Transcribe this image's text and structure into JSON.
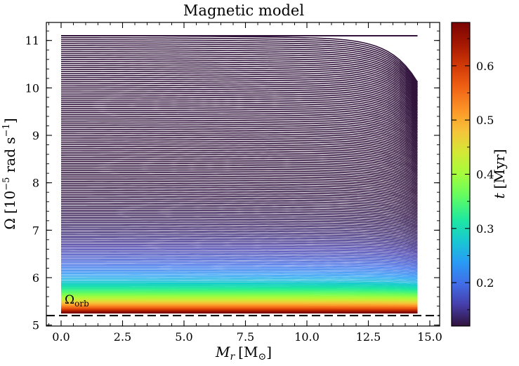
{
  "chart_data": {
    "type": "line",
    "title": "Magnetic model",
    "xlabel": {
      "symbol": "M",
      "sub": "r",
      "unit": "[M",
      "unit_sym": "⊙",
      "unit_end": "]"
    },
    "ylabel": {
      "symbol": "Ω",
      "pre": "[10",
      "exp": "−5",
      "mid": " rad s",
      "exp2": "−1",
      "end": "]"
    },
    "xlim": [
      -0.6,
      15.4
    ],
    "ylim": [
      4.98,
      11.38
    ],
    "xticks": [
      0.0,
      2.5,
      5.0,
      7.5,
      10.0,
      12.5,
      15.0
    ],
    "xtick_labels": [
      "0.0",
      "2.5",
      "5.0",
      "7.5",
      "10.0",
      "12.5",
      "15.0"
    ],
    "yticks": [
      5,
      6,
      7,
      8,
      9,
      10,
      11
    ],
    "ytick_labels": [
      "5",
      "6",
      "7",
      "8",
      "9",
      "10",
      "11"
    ],
    "series_description": "Angular velocity profiles Ω(M_r) at successive times; color encodes age",
    "mass_range": [
      0.0,
      14.5
    ],
    "profile_count": 160,
    "omega_start": 11.1,
    "omega_end": 5.26,
    "reference_line": {
      "label": "Ω",
      "label_sub": "orb",
      "value": 5.2,
      "style": "dashed"
    },
    "colorbar": {
      "label_symbol": "t",
      "label_unit": "[Myr]",
      "range": [
        0.12,
        0.68
      ],
      "ticks": [
        0.2,
        0.3,
        0.4,
        0.5,
        0.6
      ],
      "tick_labels": [
        "0.2",
        "0.3",
        "0.4",
        "0.5",
        "0.6"
      ],
      "colormap": "turbo"
    },
    "colors": {
      "early": "#30123b",
      "late": "#7a0403",
      "axis": "#000000",
      "background": "#ffffff"
    }
  }
}
